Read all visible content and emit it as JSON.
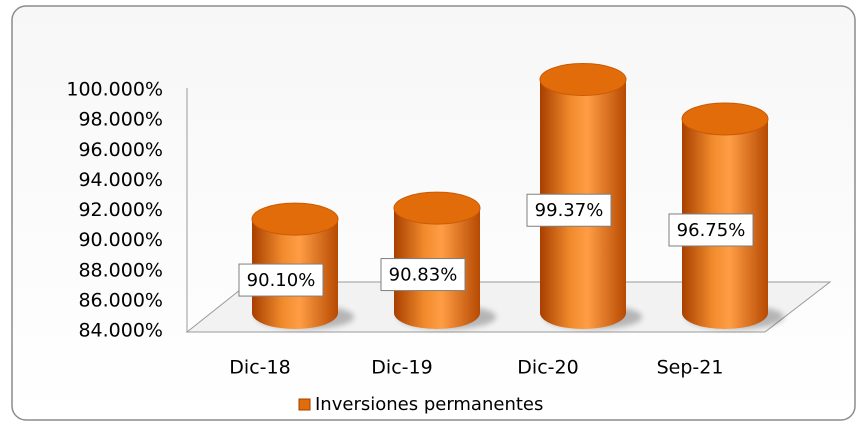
{
  "chart_data": {
    "type": "bar",
    "categories": [
      "Dic-18",
      "Dic-19",
      "Dic-20",
      "Sep-21"
    ],
    "series": [
      {
        "name": "Inversiones permanentes",
        "color": "#e36c0a",
        "values": [
          90.1,
          90.83,
          99.37,
          96.75
        ],
        "value_labels": [
          "90.10%",
          "90.83%",
          "99.37%",
          "96.75%"
        ]
      }
    ],
    "ylim": [
      84,
      100
    ],
    "yticks": [
      {
        "value": 84,
        "label": "84.000%"
      },
      {
        "value": 86,
        "label": "86.000%"
      },
      {
        "value": 88,
        "label": "88.000%"
      },
      {
        "value": 90,
        "label": "90.000%"
      },
      {
        "value": 92,
        "label": "92.000%"
      },
      {
        "value": 94,
        "label": "94.000%"
      },
      {
        "value": 96,
        "label": "96.000%"
      },
      {
        "value": 98,
        "label": "98.000%"
      },
      {
        "value": 100,
        "label": "100.000%"
      }
    ],
    "grid": false,
    "legend": "bottom"
  }
}
